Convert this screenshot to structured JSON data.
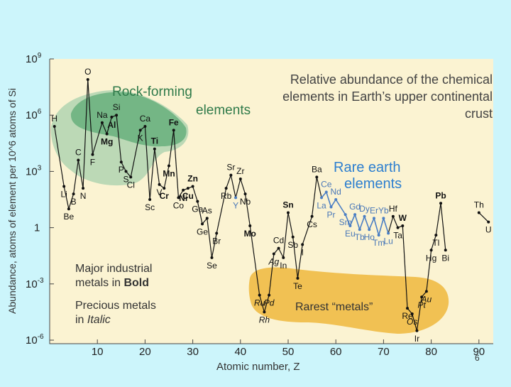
{
  "chart_data": {
    "type": "line",
    "title": "Relative abundance of the chemical elements in Earth’s upper continental crust",
    "xlabel": "Atomic number, Z",
    "ylabel": "Abundance, atoms of element per 10^6 atoms of Si",
    "xlim": [
      0,
      93
    ],
    "ylim_log10": [
      -6,
      9
    ],
    "x_ticks": [
      10,
      20,
      30,
      40,
      50,
      60,
      70,
      80,
      90
    ],
    "y_tick_labels": [
      {
        "label": "10",
        "exp": "9",
        "log10": 9
      },
      {
        "label": "10",
        "exp": "6",
        "log10": 6
      },
      {
        "label": "10",
        "exp": "3",
        "log10": 3
      },
      {
        "label": "1",
        "exp": "",
        "log10": 0
      },
      {
        "label": "10",
        "exp": "-3",
        "log10": -3
      },
      {
        "label": "10",
        "exp": "-6",
        "log10": -6
      }
    ],
    "scale": "log",
    "grid": false,
    "regions": [
      {
        "label_lines": [
          "Rock-forming",
          "elements"
        ],
        "color": "#5fae6e"
      },
      {
        "label_lines": [
          "Rare earth",
          "elements"
        ],
        "color": "#3a8fd8"
      },
      {
        "label_lines": [
          "Rarest “metals”"
        ],
        "color": "#f0c050"
      }
    ],
    "elements": [
      {
        "z": 1,
        "sym": "H",
        "log10": 5.4
      },
      {
        "z": 3,
        "sym": "Li",
        "log10": 2.2
      },
      {
        "z": 4,
        "sym": "Be",
        "log10": 1.0
      },
      {
        "z": 5,
        "sym": "B",
        "log10": 1.8
      },
      {
        "z": 6,
        "sym": "C",
        "log10": 3.6
      },
      {
        "z": 7,
        "sym": "N",
        "log10": 2.1
      },
      {
        "z": 8,
        "sym": "O",
        "log10": 7.9
      },
      {
        "z": 9,
        "sym": "F",
        "log10": 3.9
      },
      {
        "z": 11,
        "sym": "Na",
        "log10": 5.6
      },
      {
        "z": 12,
        "sym": "Mg",
        "log10": 5.0
      },
      {
        "z": 13,
        "sym": "Al",
        "log10": 5.9
      },
      {
        "z": 14,
        "sym": "Si",
        "log10": 6.0
      },
      {
        "z": 15,
        "sym": "P",
        "log10": 3.5
      },
      {
        "z": 16,
        "sym": "S",
        "log10": 3.0
      },
      {
        "z": 17,
        "sym": "Cl",
        "log10": 2.7
      },
      {
        "z": 19,
        "sym": "K",
        "log10": 5.2
      },
      {
        "z": 20,
        "sym": "Ca",
        "log10": 5.4
      },
      {
        "z": 21,
        "sym": "Sc",
        "log10": 1.5
      },
      {
        "z": 22,
        "sym": "Ti",
        "log10": 4.2
      },
      {
        "z": 23,
        "sym": "V",
        "log10": 2.3
      },
      {
        "z": 24,
        "sym": "Cr",
        "log10": 2.1
      },
      {
        "z": 25,
        "sym": "Mn",
        "log10": 3.3
      },
      {
        "z": 26,
        "sym": "Fe",
        "log10": 5.2
      },
      {
        "z": 27,
        "sym": "Co",
        "log10": 1.6
      },
      {
        "z": 28,
        "sym": "Ni",
        "log10": 2.0
      },
      {
        "z": 29,
        "sym": "Cu",
        "log10": 2.1
      },
      {
        "z": 30,
        "sym": "Zn",
        "log10": 2.2
      },
      {
        "z": 31,
        "sym": "Ga",
        "log10": 1.4
      },
      {
        "z": 32,
        "sym": "Ge",
        "log10": 0.2
      },
      {
        "z": 33,
        "sym": "As",
        "log10": 0.5
      },
      {
        "z": 34,
        "sym": "Se",
        "log10": -1.6
      },
      {
        "z": 35,
        "sym": "Br",
        "log10": -0.3
      },
      {
        "z": 37,
        "sym": "Rb",
        "log10": 2.1
      },
      {
        "z": 38,
        "sym": "Sr",
        "log10": 2.8
      },
      {
        "z": 39,
        "sym": "Y",
        "log10": 1.6
      },
      {
        "z": 40,
        "sym": "Zr",
        "log10": 2.6
      },
      {
        "z": 41,
        "sym": "Nb",
        "log10": 1.8
      },
      {
        "z": 42,
        "sym": "Mo",
        "log10": 0.1
      },
      {
        "z": 44,
        "sym": "Ru",
        "log10": -3.6
      },
      {
        "z": 45,
        "sym": "Rh",
        "log10": -4.5
      },
      {
        "z": 46,
        "sym": "Pd",
        "log10": -3.6
      },
      {
        "z": 47,
        "sym": "Ag",
        "log10": -1.4
      },
      {
        "z": 48,
        "sym": "Cd",
        "log10": -1.1
      },
      {
        "z": 49,
        "sym": "In",
        "log10": -1.6
      },
      {
        "z": 50,
        "sym": "Sn",
        "log10": 0.8
      },
      {
        "z": 51,
        "sym": "Sb",
        "log10": -0.5
      },
      {
        "z": 52,
        "sym": "Te",
        "log10": -2.7
      },
      {
        "z": 53,
        "sym": "I",
        "log10": -0.9
      },
      {
        "z": 55,
        "sym": "Cs",
        "log10": 0.6
      },
      {
        "z": 56,
        "sym": "Ba",
        "log10": 2.7
      },
      {
        "z": 57,
        "sym": "La",
        "log10": 1.6
      },
      {
        "z": 58,
        "sym": "Ce",
        "log10": 1.9
      },
      {
        "z": 59,
        "sym": "Pr",
        "log10": 1.1
      },
      {
        "z": 60,
        "sym": "Nd",
        "log10": 1.5
      },
      {
        "z": 62,
        "sym": "Sm",
        "log10": 0.7
      },
      {
        "z": 63,
        "sym": "Eu",
        "log10": 0.1
      },
      {
        "z": 64,
        "sym": "Gd",
        "log10": 0.7
      },
      {
        "z": 65,
        "sym": "Tb",
        "log10": -0.1
      },
      {
        "z": 66,
        "sym": "Dy",
        "log10": 0.6
      },
      {
        "z": 67,
        "sym": "Ho",
        "log10": -0.1
      },
      {
        "z": 68,
        "sym": "Er",
        "log10": 0.5
      },
      {
        "z": 69,
        "sym": "Tm",
        "log10": -0.4
      },
      {
        "z": 70,
        "sym": "Yb",
        "log10": 0.5
      },
      {
        "z": 71,
        "sym": "Lu",
        "log10": -0.3
      },
      {
        "z": 72,
        "sym": "Hf",
        "log10": 0.6
      },
      {
        "z": 73,
        "sym": "Ta",
        "log10": 0.0
      },
      {
        "z": 74,
        "sym": "W",
        "log10": 0.1
      },
      {
        "z": 75,
        "sym": "Re",
        "log10": -4.3
      },
      {
        "z": 76,
        "sym": "Os",
        "log10": -4.6
      },
      {
        "z": 77,
        "sym": "Ir",
        "log10": -5.5
      },
      {
        "z": 78,
        "sym": "Pt",
        "log10": -3.7
      },
      {
        "z": 79,
        "sym": "Au",
        "log10": -3.4
      },
      {
        "z": 80,
        "sym": "Hg",
        "log10": -1.2
      },
      {
        "z": 81,
        "sym": "Tl",
        "log10": -0.4
      },
      {
        "z": 82,
        "sym": "Pb",
        "log10": 1.3
      },
      {
        "z": 83,
        "sym": "Bi",
        "log10": -1.2
      },
      {
        "z": 90,
        "sym": "Th",
        "log10": 0.8
      },
      {
        "z": 92,
        "sym": "U",
        "log10": 0.3
      }
    ],
    "bold_elements": [
      "Mg",
      "Al",
      "Ti",
      "Fe",
      "Mn",
      "Cr",
      "Cu",
      "Zn",
      "Ni",
      "Sn",
      "Mo",
      "Pb",
      "W"
    ],
    "italic_elements": [
      "Ru",
      "Rh",
      "Pd",
      "Ag",
      "Os",
      "Pt",
      "Au"
    ],
    "ree_elements": [
      "Y",
      "La",
      "Ce",
      "Pr",
      "Nd",
      "Sm",
      "Eu",
      "Gd",
      "Tb",
      "Dy",
      "Ho",
      "Er",
      "Tm",
      "Yb",
      "Lu"
    ],
    "legend": [
      {
        "lines": [
          "Major industrial",
          "metals in |Bold"
        ]
      },
      {
        "lines": [
          "Precious metals",
          "in |Italic"
        ]
      }
    ]
  },
  "page_number": "6"
}
